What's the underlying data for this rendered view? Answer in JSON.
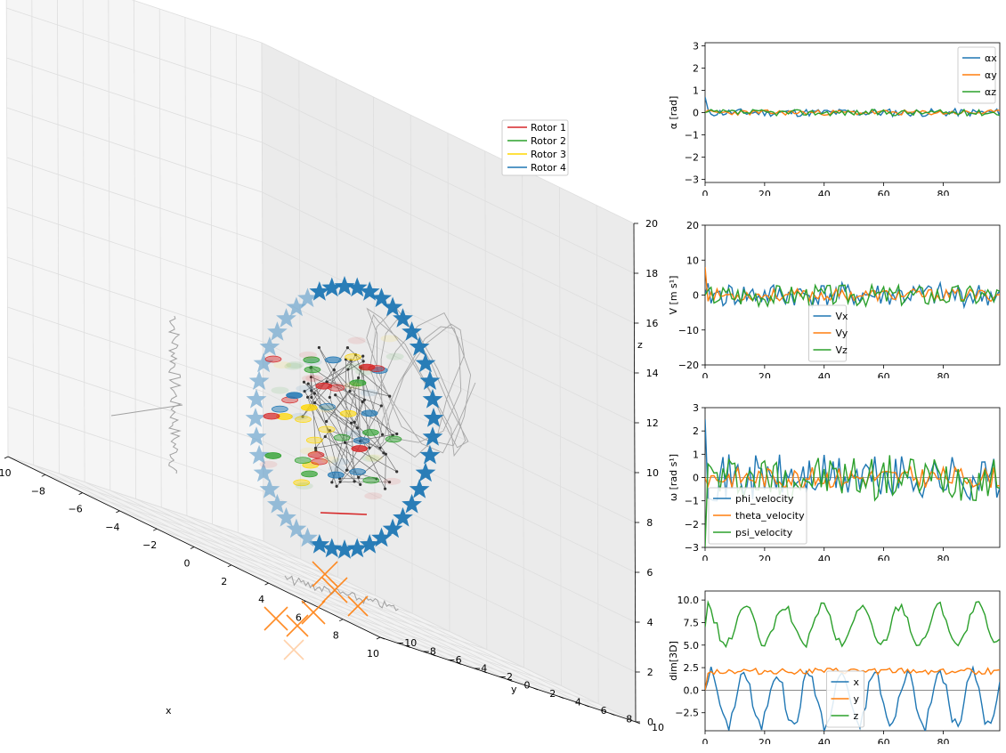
{
  "main3d": {
    "axes": {
      "x": {
        "label": "x",
        "ticks": [
          "−10",
          "−8",
          "−6",
          "−4",
          "−2",
          "0",
          "2",
          "4",
          "6",
          "8",
          "10"
        ]
      },
      "y": {
        "label": "y",
        "ticks": [
          "−10",
          "−8",
          "−6",
          "−4",
          "−2",
          "0",
          "2",
          "4",
          "6",
          "8",
          "10"
        ]
      },
      "z": {
        "label": "z",
        "ticks": [
          "0",
          "2",
          "4",
          "6",
          "8",
          "10",
          "12",
          "14",
          "16",
          "18",
          "20"
        ]
      }
    },
    "legend": [
      {
        "label": "Rotor 1",
        "color": "#d62728"
      },
      {
        "label": "Rotor 2",
        "color": "#2ca02c"
      },
      {
        "label": "Rotor 3",
        "color": "#ffd700"
      },
      {
        "label": "Rotor 4",
        "color": "#1f77b4"
      }
    ]
  },
  "panels": [
    {
      "id": "alpha",
      "ylabel": "α [rad]",
      "ylim": [
        -3.14,
        3.14
      ],
      "yticks": [
        "−3",
        "−2",
        "−1",
        "0",
        "1",
        "2",
        "3"
      ],
      "ytick_values": [
        -3,
        -2,
        -1,
        0,
        1,
        2,
        3
      ],
      "xticks": [
        "0",
        "20",
        "40",
        "60",
        "80"
      ],
      "legend_position": "upper right",
      "legend": [
        "αx",
        "αy",
        "αz"
      ],
      "zero_line": false
    },
    {
      "id": "velocity",
      "ylabel": "V [m s¹]",
      "ylim": [
        -20,
        20
      ],
      "yticks": [
        "−20",
        "−10",
        "0",
        "10",
        "20"
      ],
      "ytick_values": [
        -20,
        -10,
        0,
        10,
        20
      ],
      "xticks": [
        "0",
        "20",
        "40",
        "60",
        "80"
      ],
      "legend_position": "lower center",
      "legend": [
        "Vx",
        "Vy",
        "Vz"
      ],
      "zero_line": false
    },
    {
      "id": "omega",
      "ylabel": "ω [rad s¹]",
      "ylim": [
        -3,
        3
      ],
      "yticks": [
        "−3",
        "−2",
        "−1",
        "0",
        "1",
        "2",
        "3"
      ],
      "ytick_values": [
        -3,
        -2,
        -1,
        0,
        1,
        2,
        3
      ],
      "xticks": [
        "0",
        "20",
        "40",
        "60",
        "80"
      ],
      "legend_position": "lower left",
      "legend": [
        "phi_velocity",
        "theta_velocity",
        "psi_velocity"
      ],
      "zero_line": true
    },
    {
      "id": "dim",
      "ylabel": "dim[3D]",
      "ylim": [
        -4.5,
        11
      ],
      "yticks": [
        "−2.5",
        "0.0",
        "2.5",
        "5.0",
        "7.5",
        "10.0"
      ],
      "ytick_values": [
        -2.5,
        0,
        2.5,
        5,
        7.5,
        10
      ],
      "xticks": [
        "0",
        "20",
        "40",
        "60",
        "80"
      ],
      "legend_position": "lower center",
      "legend": [
        "x",
        "y",
        "z"
      ],
      "zero_line": true
    }
  ],
  "chart_data": [
    {
      "type": "line",
      "title": "",
      "xlabel": "",
      "ylabel": "α [rad]",
      "xlim": [
        0,
        99
      ],
      "ylim": [
        -3.14,
        3.14
      ],
      "series": [
        {
          "name": "αx",
          "color": "#1f77b4",
          "amplitude": 0.18,
          "offset": 0.0,
          "seed": 11,
          "start": 0.7
        },
        {
          "name": "αy",
          "color": "#ff7f0e",
          "amplitude": 0.12,
          "offset": 0.0,
          "seed": 23,
          "start": 0.0
        },
        {
          "name": "αz",
          "color": "#2ca02c",
          "amplitude": 0.14,
          "offset": 0.0,
          "seed": 37,
          "start": 0.0
        }
      ]
    },
    {
      "type": "line",
      "title": "",
      "xlabel": "",
      "ylabel": "V [m s¹]",
      "xlim": [
        0,
        99
      ],
      "ylim": [
        -20,
        20
      ],
      "series": [
        {
          "name": "Vx",
          "color": "#1f77b4",
          "amplitude": 3.5,
          "offset": 0.0,
          "seed": 41,
          "start": 0
        },
        {
          "name": "Vy",
          "color": "#ff7f0e",
          "amplitude": 1.8,
          "offset": 0.0,
          "seed": 53,
          "start": 8
        },
        {
          "name": "Vz",
          "color": "#2ca02c",
          "amplitude": 3.2,
          "offset": 0.0,
          "seed": 67,
          "start": 0
        }
      ]
    },
    {
      "type": "line",
      "title": "",
      "xlabel": "",
      "ylabel": "ω [rad s¹]",
      "xlim": [
        0,
        99
      ],
      "ylim": [
        -3,
        3
      ],
      "series": [
        {
          "name": "phi_velocity",
          "color": "#1f77b4",
          "amplitude": 1.0,
          "offset": 0.0,
          "seed": 71,
          "start": 2.5
        },
        {
          "name": "theta_velocity",
          "color": "#ff7f0e",
          "amplitude": 0.45,
          "offset": 0.0,
          "seed": 83,
          "start": 0
        },
        {
          "name": "psi_velocity",
          "color": "#2ca02c",
          "amplitude": 1.0,
          "offset": 0.0,
          "seed": 97,
          "start": -3
        }
      ]
    },
    {
      "type": "line",
      "title": "",
      "xlabel": "",
      "ylabel": "dim[3D]",
      "xlim": [
        0,
        99
      ],
      "ylim": [
        -4.5,
        11
      ],
      "series": [
        {
          "name": "x",
          "color": "#1f77b4",
          "amplitude": 3.0,
          "offset": -1.0,
          "seed": 101,
          "start": 0,
          "periodic": true,
          "period": 11
        },
        {
          "name": "y",
          "color": "#ff7f0e",
          "amplitude": 0.35,
          "offset": 2.1,
          "seed": 113,
          "start": 0
        },
        {
          "name": "z",
          "color": "#2ca02c",
          "amplitude": 2.2,
          "offset": 7.2,
          "seed": 127,
          "start": 7,
          "periodic": true,
          "period": 13
        }
      ]
    }
  ]
}
